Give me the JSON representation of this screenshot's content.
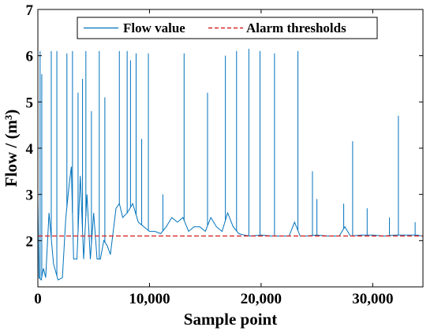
{
  "chart_data": {
    "type": "line",
    "xlabel": "Sample point",
    "ylabel": "Flow / (m³)",
    "xlim": [
      0,
      34500
    ],
    "ylim": [
      1,
      7
    ],
    "x_ticks": [
      0,
      10000,
      20000,
      30000
    ],
    "x_tick_labels": [
      "0",
      "10,000",
      "20,000",
      "30,000"
    ],
    "y_ticks": [
      2,
      3,
      4,
      5,
      6,
      7
    ],
    "y_tick_labels": [
      "2",
      "3",
      "4",
      "5",
      "6",
      "7"
    ],
    "grid": false,
    "legend_position": "top-center",
    "series": [
      {
        "name": "Flow value",
        "style": "solid",
        "color": "#0072BD",
        "x": [
          0,
          100,
          300,
          500,
          700,
          1000,
          1400,
          1800,
          2200,
          2500,
          2800,
          3000,
          3200,
          3500,
          3800,
          4100,
          4400,
          4700,
          5000,
          5300,
          5600,
          5900,
          6200,
          6500,
          6800,
          7000,
          7300,
          7600,
          8000,
          8500,
          9000,
          9500,
          10000,
          10500,
          11000,
          11500,
          12000,
          12500,
          13000,
          13500,
          14000,
          14500,
          15000,
          15500,
          16000,
          16500,
          17000,
          17500,
          18000,
          18500,
          19000,
          20000,
          21000,
          22000,
          22500,
          23000,
          23500,
          24000,
          25000,
          26000,
          27000,
          27500,
          28000,
          29000,
          30000,
          31000,
          32000,
          33000,
          34000,
          34400
        ],
        "values": [
          2.9,
          1.2,
          1.15,
          1.4,
          1.2,
          2.6,
          1.5,
          1.15,
          1.2,
          2.5,
          3.2,
          3.6,
          1.6,
          1.6,
          3.4,
          1.6,
          3.0,
          1.6,
          2.6,
          1.6,
          1.6,
          2.0,
          1.9,
          1.7,
          2.3,
          2.7,
          2.8,
          2.5,
          2.6,
          2.8,
          2.4,
          2.3,
          2.2,
          2.2,
          2.15,
          2.3,
          2.5,
          2.4,
          2.5,
          2.2,
          2.3,
          2.3,
          2.2,
          2.5,
          2.3,
          2.2,
          2.6,
          2.3,
          2.15,
          2.12,
          2.1,
          2.12,
          2.1,
          2.1,
          2.1,
          2.4,
          2.1,
          2.1,
          2.12,
          2.1,
          2.1,
          2.3,
          2.1,
          2.12,
          2.12,
          2.1,
          2.12,
          2.12,
          2.12,
          2.1
        ],
        "spikes": [
          {
            "x": 200,
            "value": 6.1
          },
          {
            "x": 350,
            "value": 5.6
          },
          {
            "x": 1200,
            "value": 6.1
          },
          {
            "x": 1700,
            "value": 6.1
          },
          {
            "x": 2600,
            "value": 6.05
          },
          {
            "x": 3100,
            "value": 6.1
          },
          {
            "x": 3600,
            "value": 5.2
          },
          {
            "x": 4000,
            "value": 5.5
          },
          {
            "x": 4300,
            "value": 6.1
          },
          {
            "x": 4800,
            "value": 4.8
          },
          {
            "x": 5500,
            "value": 6.1
          },
          {
            "x": 6000,
            "value": 5.1
          },
          {
            "x": 7300,
            "value": 6.1
          },
          {
            "x": 8000,
            "value": 6.1
          },
          {
            "x": 8300,
            "value": 5.9
          },
          {
            "x": 8800,
            "value": 6.05
          },
          {
            "x": 9300,
            "value": 4.2
          },
          {
            "x": 9900,
            "value": 6.05
          },
          {
            "x": 11200,
            "value": 3.0
          },
          {
            "x": 13100,
            "value": 6.05
          },
          {
            "x": 15200,
            "value": 5.2
          },
          {
            "x": 16800,
            "value": 6.0
          },
          {
            "x": 17800,
            "value": 6.1
          },
          {
            "x": 18900,
            "value": 6.15
          },
          {
            "x": 19900,
            "value": 6.1
          },
          {
            "x": 21200,
            "value": 6.05
          },
          {
            "x": 23300,
            "value": 6.1
          },
          {
            "x": 24600,
            "value": 3.5
          },
          {
            "x": 25000,
            "value": 2.9
          },
          {
            "x": 27400,
            "value": 2.8
          },
          {
            "x": 28200,
            "value": 4.15
          },
          {
            "x": 29500,
            "value": 2.7
          },
          {
            "x": 31500,
            "value": 2.5
          },
          {
            "x": 32300,
            "value": 4.7
          },
          {
            "x": 33800,
            "value": 2.4
          }
        ]
      },
      {
        "name": "Alarm thresholds",
        "style": "dashed",
        "color": "#D62728",
        "x": [
          0,
          34500
        ],
        "values": [
          2.1,
          2.1
        ]
      }
    ]
  }
}
